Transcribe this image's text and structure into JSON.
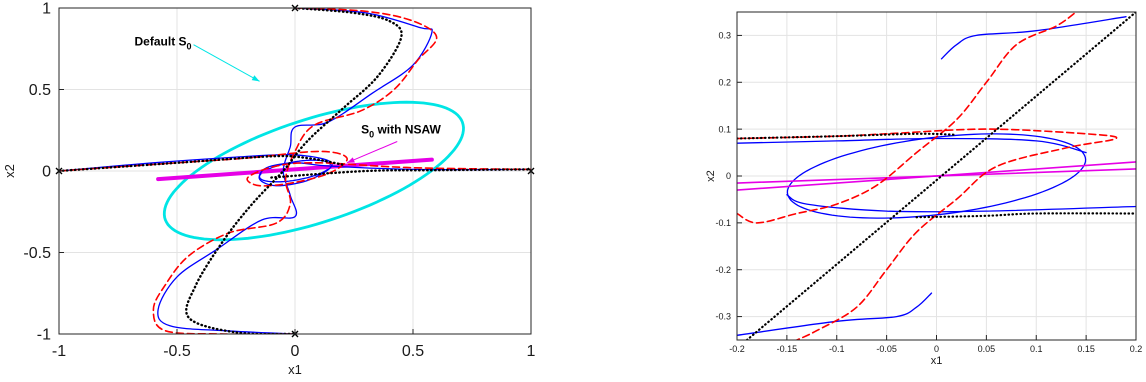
{
  "chart_data": [
    {
      "type": "line",
      "title": "",
      "xlabel": "x1",
      "ylabel": "x2",
      "xlim": [
        -1,
        1
      ],
      "ylim": [
        -1,
        1
      ],
      "xticks": [
        -1,
        -0.5,
        0,
        0.5,
        1
      ],
      "xtick_labels": [
        "-1",
        "-0.5",
        "0",
        "0.5",
        "1"
      ],
      "yticks": [
        -1,
        -0.5,
        0,
        0.5,
        1
      ],
      "ytick_labels": [
        "-1",
        "-0.5",
        "0",
        "0.5",
        "1"
      ],
      "grid": true,
      "annotations": [
        {
          "text_main": "Default S",
          "text_sub": "0",
          "text_after": "",
          "color": "#00e5e5",
          "at": [
            -0.68,
            0.77
          ],
          "arrow_to": [
            -0.15,
            0.55
          ]
        },
        {
          "text_main": "S",
          "text_sub": "0",
          "text_after": " with NSAW",
          "color": "#e600e6",
          "at": [
            0.28,
            0.23
          ],
          "arrow_to": [
            0.22,
            0.05
          ]
        }
      ],
      "series": [
        {
          "style": "solid",
          "color": "#0000ff",
          "width": 1.3,
          "points": [
            [
              -1,
              0
            ],
            [
              -0.6,
              0.05
            ],
            [
              -0.25,
              0.085
            ],
            [
              -0.02,
              0.1
            ],
            [
              0.13,
              0.07
            ],
            [
              0.15,
              0.02
            ],
            [
              0.05,
              -0.06
            ],
            [
              -0.08,
              -0.09
            ],
            [
              -0.15,
              -0.05
            ],
            [
              -0.12,
              0.02
            ],
            [
              0,
              0.05
            ],
            [
              0.15,
              0.03
            ],
            [
              0.5,
              0.01
            ],
            [
              1,
              0.01
            ]
          ]
        },
        {
          "style": "solid",
          "color": "#0000ff",
          "width": 1.3,
          "points": [
            [
              0,
              1
            ],
            [
              0.3,
              0.97
            ],
            [
              0.53,
              0.88
            ],
            [
              0.58,
              0.85
            ],
            [
              0.5,
              0.65
            ],
            [
              0.33,
              0.48
            ],
            [
              0.14,
              0.3
            ],
            [
              0.0,
              0.27
            ],
            [
              -0.02,
              0.15
            ],
            [
              -0.05,
              0.0
            ],
            [
              -0.02,
              -0.15
            ],
            [
              0.0,
              -0.28
            ],
            [
              -0.14,
              -0.3
            ],
            [
              -0.33,
              -0.48
            ],
            [
              -0.5,
              -0.65
            ],
            [
              -0.58,
              -0.85
            ],
            [
              -0.53,
              -0.95
            ],
            [
              -0.3,
              -0.98
            ],
            [
              0,
              -1
            ]
          ]
        },
        {
          "style": "dashed",
          "color": "#ff0000",
          "width": 1.6,
          "points": [
            [
              -1,
              0
            ],
            [
              -0.5,
              0.05
            ],
            [
              -0.2,
              0.08
            ],
            [
              0.1,
              0.12
            ],
            [
              0.22,
              0.08
            ],
            [
              0.15,
              -0.01
            ],
            [
              0,
              -0.07
            ],
            [
              -0.15,
              -0.09
            ],
            [
              -0.2,
              -0.04
            ],
            [
              -0.08,
              0.03
            ],
            [
              0.1,
              0.05
            ],
            [
              0.5,
              0.02
            ],
            [
              1,
              0.01
            ]
          ]
        },
        {
          "style": "dashed",
          "color": "#ff0000",
          "width": 1.6,
          "points": [
            [
              0,
              1
            ],
            [
              0.3,
              0.98
            ],
            [
              0.5,
              0.92
            ],
            [
              0.6,
              0.82
            ],
            [
              0.52,
              0.68
            ],
            [
              0.42,
              0.5
            ],
            [
              0.28,
              0.37
            ],
            [
              0.08,
              0.28
            ],
            [
              0.0,
              0.12
            ],
            [
              -0.04,
              -0.05
            ],
            [
              -0.02,
              -0.2
            ],
            [
              -0.08,
              -0.32
            ],
            [
              -0.28,
              -0.38
            ],
            [
              -0.45,
              -0.52
            ],
            [
              -0.55,
              -0.7
            ],
            [
              -0.6,
              -0.85
            ],
            [
              -0.55,
              -0.98
            ],
            [
              -0.3,
              -1
            ],
            [
              0,
              -1
            ]
          ]
        },
        {
          "style": "dotted",
          "color": "#000000",
          "width": 2.4,
          "points": [
            [
              -1,
              0
            ],
            [
              -0.5,
              0.05
            ],
            [
              -0.1,
              0.09
            ],
            [
              0.05,
              0.08
            ],
            [
              0.2,
              0.04
            ]
          ]
        },
        {
          "style": "dotted",
          "color": "#000000",
          "width": 2.4,
          "points": [
            [
              0,
              1
            ],
            [
              0.25,
              0.97
            ],
            [
              0.4,
              0.92
            ],
            [
              0.45,
              0.82
            ],
            [
              0.35,
              0.58
            ],
            [
              0.2,
              0.38
            ],
            [
              0.05,
              0.18
            ],
            [
              -0.05,
              0.0
            ],
            [
              -0.18,
              -0.2
            ],
            [
              -0.3,
              -0.42
            ],
            [
              -0.42,
              -0.7
            ],
            [
              -0.45,
              -0.9
            ],
            [
              -0.25,
              -0.99
            ],
            [
              0,
              -1
            ]
          ]
        },
        {
          "style": "dotted",
          "color": "#000000",
          "width": 2.4,
          "points": [
            [
              -0.1,
              -0.04
            ],
            [
              0.3,
              0.0
            ],
            [
              0.6,
              0.005
            ],
            [
              1,
              0.01
            ]
          ]
        }
      ],
      "ellipses": [
        {
          "color": "#00e5e5",
          "width": 2.8,
          "center": [
            0.08,
            0.0
          ],
          "rx": 0.7,
          "ry": 0.3,
          "angle_deg": 28
        },
        {
          "color": "#0000ff",
          "width": 1.3,
          "center": [
            0.0,
            0.0
          ],
          "rx": 0.155,
          "ry": 0.055,
          "angle_deg": 15
        }
      ],
      "thick_lines": [
        {
          "color": "#e600e6",
          "width": 4,
          "points": [
            [
              -0.58,
              -0.05
            ],
            [
              0.58,
              0.07
            ]
          ]
        }
      ],
      "markers": [
        [
          -1,
          0
        ],
        [
          1,
          0
        ],
        [
          0,
          1
        ],
        [
          0,
          -1
        ]
      ]
    },
    {
      "type": "line",
      "title": "",
      "xlabel": "x1",
      "ylabel": "x2",
      "xlim": [
        -0.2,
        0.2
      ],
      "ylim": [
        -0.35,
        0.35
      ],
      "xticks": [
        -0.2,
        -0.15,
        -0.1,
        -0.05,
        0,
        0.05,
        0.1,
        0.15,
        0.2
      ],
      "xtick_labels": [
        "-0.2",
        "-0.15",
        "-0.1",
        "-0.05",
        "0",
        "0.05",
        "0.1",
        "0.15",
        "0.2"
      ],
      "yticks": [
        -0.3,
        -0.2,
        -0.1,
        0,
        0.1,
        0.2,
        0.3
      ],
      "ytick_labels": [
        "-0.3",
        "-0.2",
        "-0.1",
        "0",
        "0.1",
        "0.2",
        "0.3"
      ],
      "grid": true,
      "annotations": [],
      "series": [
        {
          "style": "solid",
          "color": "#0000ff",
          "width": 1.3,
          "points": [
            [
              -0.2,
              0.07
            ],
            [
              -0.1,
              0.075
            ],
            [
              0,
              0.08
            ],
            [
              0.1,
              0.075
            ],
            [
              0.15,
              0.05
            ]
          ]
        },
        {
          "style": "solid",
          "color": "#0000ff",
          "width": 1.3,
          "points": [
            [
              -0.15,
              -0.04
            ],
            [
              -0.13,
              -0.06
            ],
            [
              -0.05,
              -0.075
            ],
            [
              0.05,
              -0.075
            ],
            [
              0.2,
              -0.065
            ]
          ]
        },
        {
          "style": "solid",
          "color": "#0000ff",
          "width": 1.3,
          "points": [
            [
              -0.2,
              -0.34
            ],
            [
              -0.1,
              -0.31
            ],
            [
              -0.04,
              -0.3
            ],
            [
              -0.02,
              -0.28
            ],
            [
              -0.005,
              -0.25
            ]
          ]
        },
        {
          "style": "solid",
          "color": "#0000ff",
          "width": 1.3,
          "points": [
            [
              0.005,
              0.25
            ],
            [
              0.02,
              0.28
            ],
            [
              0.04,
              0.3
            ],
            [
              0.1,
              0.31
            ],
            [
              0.19,
              0.34
            ]
          ]
        },
        {
          "style": "dashed",
          "color": "#ff0000",
          "width": 1.6,
          "points": [
            [
              -0.2,
              0.08
            ],
            [
              -0.1,
              0.085
            ],
            [
              -0.05,
              0.09
            ],
            [
              0.05,
              0.1
            ],
            [
              0.15,
              0.09
            ],
            [
              0.18,
              0.08
            ],
            [
              0.13,
              0.06
            ],
            [
              0.06,
              0.02
            ],
            [
              0.02,
              -0.05
            ],
            [
              -0.02,
              -0.12
            ],
            [
              -0.05,
              -0.2
            ],
            [
              -0.08,
              -0.28
            ],
            [
              -0.12,
              -0.33
            ],
            [
              -0.14,
              -0.35
            ]
          ]
        },
        {
          "style": "dashed",
          "color": "#ff0000",
          "width": 1.6,
          "points": [
            [
              -0.2,
              -0.08
            ],
            [
              -0.18,
              -0.1
            ],
            [
              -0.14,
              -0.08
            ],
            [
              -0.1,
              -0.06
            ],
            [
              -0.06,
              -0.02
            ],
            [
              -0.02,
              0.05
            ],
            [
              0.02,
              0.12
            ],
            [
              0.05,
              0.2
            ],
            [
              0.08,
              0.28
            ],
            [
              0.12,
              0.32
            ],
            [
              0.14,
              0.35
            ]
          ]
        },
        {
          "style": "dotted",
          "color": "#000000",
          "width": 2.2,
          "points": [
            [
              -0.2,
              0.08
            ],
            [
              -0.1,
              0.085
            ],
            [
              -0.02,
              0.09
            ],
            [
              0.02,
              0.088
            ]
          ]
        },
        {
          "style": "dotted",
          "color": "#000000",
          "width": 2.2,
          "points": [
            [
              -0.02,
              -0.088
            ],
            [
              0.05,
              -0.085
            ],
            [
              0.1,
              -0.08
            ],
            [
              0.2,
              -0.08
            ]
          ]
        },
        {
          "style": "dotted",
          "color": "#000000",
          "width": 2.2,
          "points": [
            [
              -0.19,
              -0.35
            ],
            [
              0.2,
              0.35
            ]
          ]
        }
      ],
      "ellipses": [
        {
          "color": "#0000ff",
          "width": 1.3,
          "center": [
            0.0,
            0.0
          ],
          "rx": 0.155,
          "ry": 0.08,
          "angle_deg": 18
        }
      ],
      "thick_lines": [
        {
          "color": "#e600e6",
          "width": 1.6,
          "points": [
            [
              -0.2,
              -0.03
            ],
            [
              0.2,
              0.03
            ]
          ]
        },
        {
          "color": "#e600e6",
          "width": 1.6,
          "points": [
            [
              -0.2,
              -0.015
            ],
            [
              0.2,
              0.015
            ]
          ]
        }
      ],
      "markers": []
    }
  ]
}
